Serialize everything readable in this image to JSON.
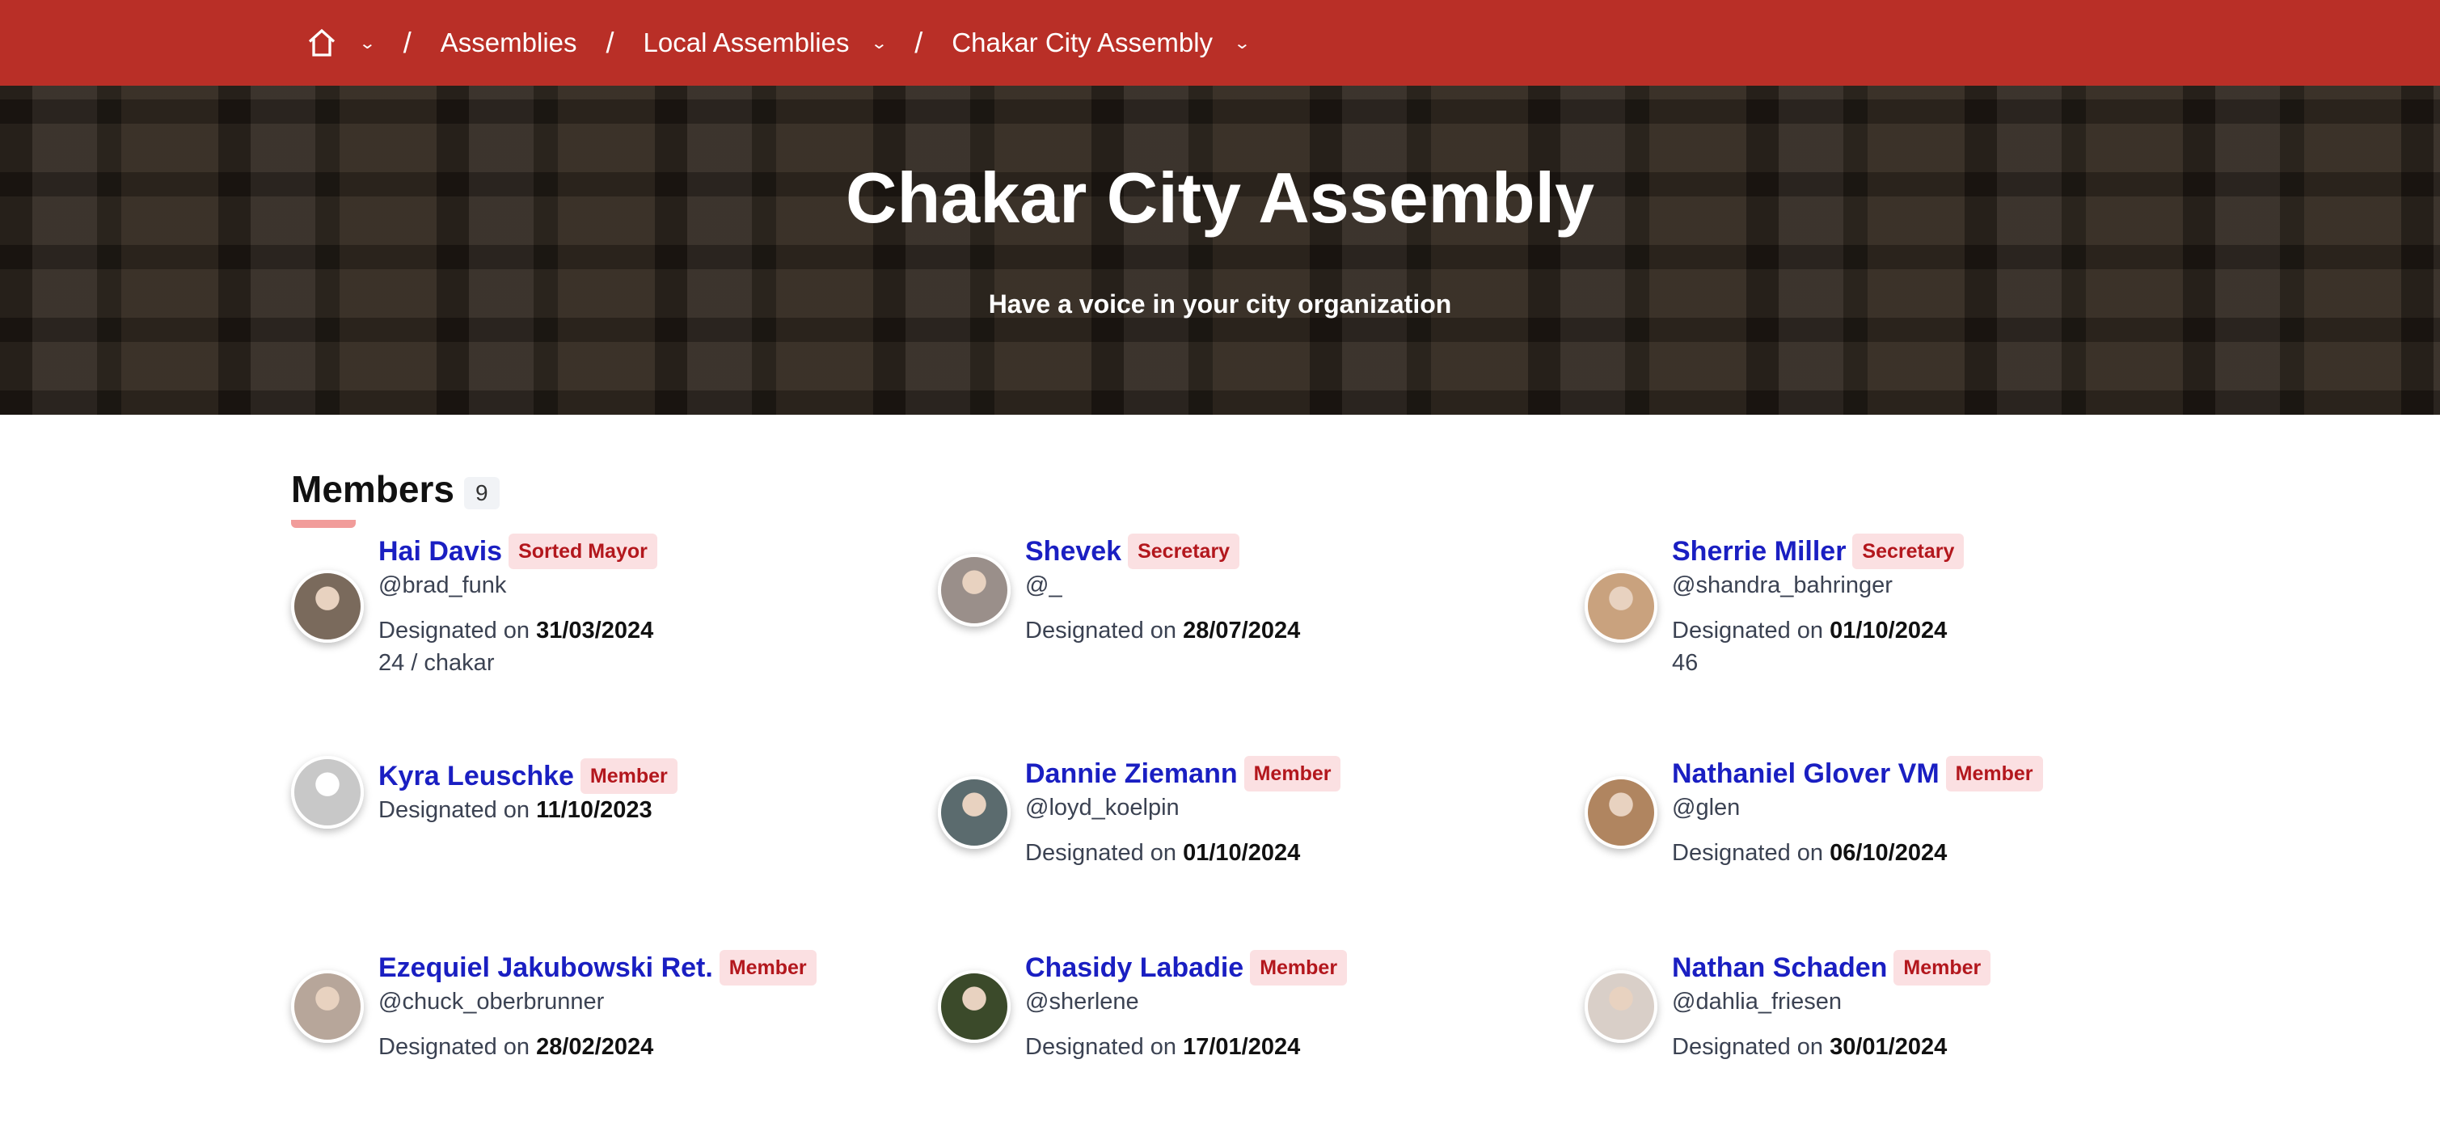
{
  "breadcrumb": {
    "items": [
      {
        "label": "Assemblies"
      },
      {
        "label": "Local Assemblies"
      },
      {
        "label": "Chakar City Assembly"
      }
    ],
    "separator": "/"
  },
  "hero": {
    "title": "Chakar City Assembly",
    "subtitle": "Have a voice in your city organization"
  },
  "members": {
    "heading": "Members",
    "count": "9",
    "designated_label": "Designated on",
    "items": [
      {
        "name": "Hai Davis",
        "role": "Sorted Mayor",
        "handle": "@brad_funk",
        "date": "31/03/2024",
        "extra": "24 / chakar",
        "avatar_color": "#7a6a5c"
      },
      {
        "name": "Shevek",
        "role": "Secretary",
        "handle": "@_",
        "date": "28/07/2024",
        "extra": "",
        "avatar_color": "#9a8f8a"
      },
      {
        "name": "Sherrie Miller",
        "role": "Secretary",
        "handle": "@shandra_bahringer",
        "date": "01/10/2024",
        "extra": "46",
        "avatar_color": "#c9a27e"
      },
      {
        "name": "Kyra Leuschke",
        "role": "Member",
        "handle": "",
        "date": "11/10/2023",
        "extra": "",
        "avatar_color": "#c8c8c8"
      },
      {
        "name": "Dannie Ziemann",
        "role": "Member",
        "handle": "@loyd_koelpin",
        "date": "01/10/2024",
        "extra": "",
        "avatar_color": "#5b6b6e"
      },
      {
        "name": "Nathaniel Glover VM",
        "role": "Member",
        "handle": "@glen",
        "date": "06/10/2024",
        "extra": "",
        "avatar_color": "#b08560"
      },
      {
        "name": "Ezequiel Jakubowski Ret.",
        "role": "Member",
        "handle": "@chuck_oberbrunner",
        "date": "28/02/2024",
        "extra": "",
        "avatar_color": "#b7a69a"
      },
      {
        "name": "Chasidy Labadie",
        "role": "Member",
        "handle": "@sherlene",
        "date": "17/01/2024",
        "extra": "",
        "avatar_color": "#3b4a2a"
      },
      {
        "name": "Nathan Schaden",
        "role": "Member",
        "handle": "@dahlia_friesen",
        "date": "30/01/2024",
        "extra": "",
        "avatar_color": "#d9cfc8"
      }
    ]
  }
}
